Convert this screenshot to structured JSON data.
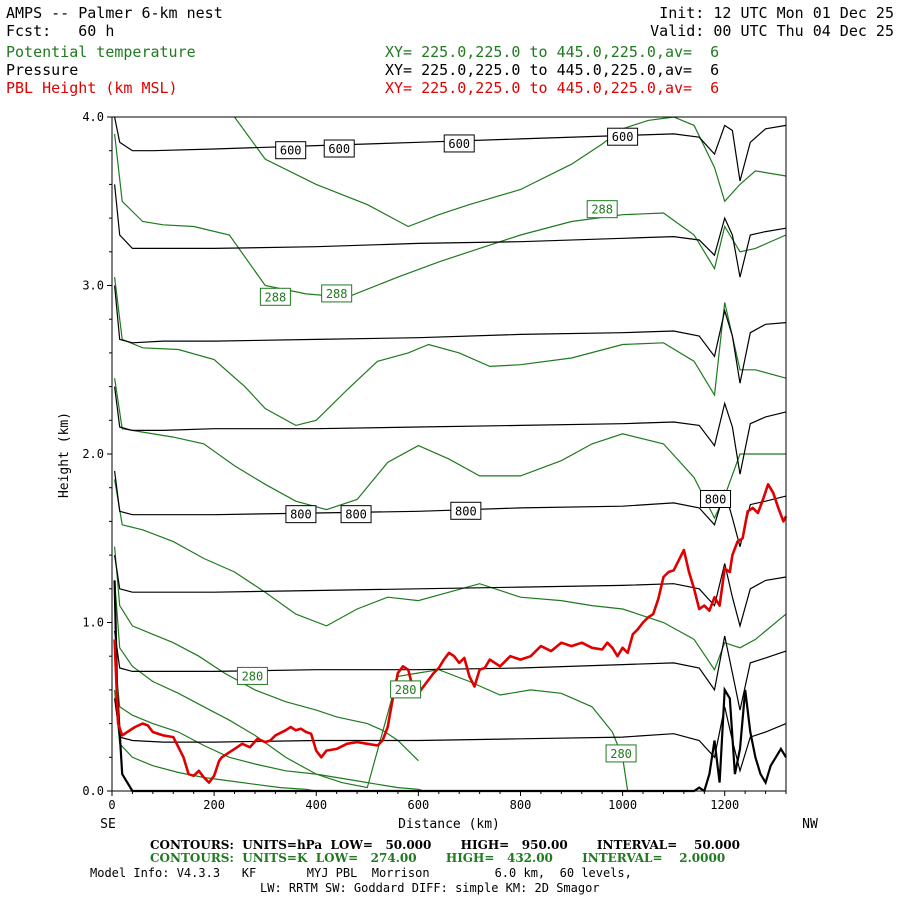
{
  "header": {
    "title": "AMPS -- Palmer 6-km nest",
    "forecast": "Fcst:   60 h",
    "init": "Init: 12 UTC Mon 01 Dec 25",
    "valid": "Valid: 00 UTC Thu 04 Dec 25",
    "fields": [
      {
        "name": "Potential temperature",
        "xy": "XY= 225.0,225.0 to 445.0,225.0,av=  6",
        "color": "#1e7a1e"
      },
      {
        "name": "Pressure",
        "xy": "XY= 225.0,225.0 to 445.0,225.0,av=  6",
        "color": "#000000"
      },
      {
        "name": "PBL Height (km MSL)",
        "xy": "XY= 225.0,225.0 to 445.0,225.0,av=  6",
        "color": "#e00000"
      }
    ]
  },
  "chart_data": {
    "type": "line",
    "title": "AMPS -- Palmer 6-km nest cross-section",
    "xlabel": "Distance (km)",
    "ylabel": "Height (km)",
    "xlim": [
      0,
      1320
    ],
    "ylim": [
      0,
      4.0
    ],
    "x_ticks": [
      "0",
      "200",
      "400",
      "600",
      "800",
      "1000",
      "1200"
    ],
    "x_tick_values": [
      0,
      200,
      400,
      600,
      800,
      1000,
      1200
    ],
    "y_ticks": [
      "0.0",
      "1.0",
      "2.0",
      "3.0",
      "4.0"
    ],
    "y_tick_values": [
      0,
      1,
      2,
      3,
      4
    ],
    "left_end_label": "SE",
    "right_end_label": "NW",
    "pressure_contours": [
      {
        "hpa": 600,
        "x": [
          5,
          15,
          40,
          80,
          200,
          400,
          600,
          800,
          1000,
          1100,
          1150,
          1180,
          1200,
          1215,
          1230,
          1250,
          1280,
          1320
        ],
        "y": [
          4.0,
          3.85,
          3.8,
          3.8,
          3.81,
          3.83,
          3.85,
          3.87,
          3.89,
          3.9,
          3.88,
          3.78,
          3.95,
          3.92,
          3.62,
          3.85,
          3.93,
          3.95
        ]
      },
      {
        "hpa": 650,
        "x": [
          5,
          15,
          40,
          100,
          200,
          400,
          600,
          800,
          1000,
          1100,
          1150,
          1180,
          1200,
          1215,
          1230,
          1250,
          1280,
          1320
        ],
        "y": [
          3.6,
          3.3,
          3.22,
          3.22,
          3.22,
          3.23,
          3.25,
          3.26,
          3.28,
          3.29,
          3.27,
          3.18,
          3.4,
          3.3,
          3.05,
          3.3,
          3.32,
          3.34
        ]
      },
      {
        "hpa": 700,
        "x": [
          5,
          15,
          40,
          100,
          200,
          400,
          600,
          800,
          1000,
          1100,
          1150,
          1180,
          1200,
          1215,
          1230,
          1250,
          1280,
          1320
        ],
        "y": [
          3.0,
          2.68,
          2.66,
          2.67,
          2.67,
          2.68,
          2.69,
          2.71,
          2.72,
          2.73,
          2.7,
          2.58,
          2.85,
          2.7,
          2.42,
          2.72,
          2.77,
          2.78
        ]
      },
      {
        "hpa": 750,
        "x": [
          5,
          15,
          40,
          100,
          200,
          400,
          600,
          800,
          1000,
          1100,
          1150,
          1180,
          1200,
          1215,
          1230,
          1250,
          1280,
          1320
        ],
        "y": [
          2.4,
          2.16,
          2.14,
          2.14,
          2.15,
          2.15,
          2.16,
          2.17,
          2.18,
          2.19,
          2.17,
          2.05,
          2.3,
          2.16,
          1.88,
          2.18,
          2.22,
          2.25
        ]
      },
      {
        "hpa": 800,
        "x": [
          5,
          15,
          40,
          100,
          200,
          400,
          600,
          800,
          1000,
          1100,
          1150,
          1180,
          1200,
          1215,
          1230,
          1250,
          1280,
          1320
        ],
        "y": [
          1.9,
          1.66,
          1.64,
          1.64,
          1.64,
          1.65,
          1.66,
          1.68,
          1.69,
          1.71,
          1.68,
          1.58,
          1.78,
          1.62,
          1.45,
          1.7,
          1.72,
          1.75
        ]
      },
      {
        "hpa": 850,
        "x": [
          5,
          15,
          40,
          100,
          200,
          400,
          600,
          800,
          1000,
          1100,
          1150,
          1180,
          1200,
          1215,
          1230,
          1250,
          1280,
          1320
        ],
        "y": [
          1.4,
          1.2,
          1.18,
          1.18,
          1.18,
          1.19,
          1.2,
          1.21,
          1.22,
          1.23,
          1.2,
          1.1,
          1.35,
          1.15,
          0.98,
          1.2,
          1.25,
          1.27
        ]
      },
      {
        "hpa": 900,
        "x": [
          5,
          15,
          40,
          100,
          200,
          400,
          600,
          800,
          1000,
          1100,
          1150,
          1180,
          1200,
          1215,
          1230,
          1250,
          1280,
          1320
        ],
        "y": [
          0.95,
          0.73,
          0.71,
          0.71,
          0.71,
          0.72,
          0.72,
          0.73,
          0.75,
          0.76,
          0.73,
          0.6,
          0.92,
          0.7,
          0.48,
          0.76,
          0.79,
          0.83
        ]
      },
      {
        "hpa": 950,
        "x": [
          5,
          15,
          40,
          100,
          200,
          400,
          600,
          800,
          1000,
          1100,
          1150,
          1180,
          1200,
          1215,
          1230,
          1250,
          1280,
          1320
        ],
        "y": [
          0.55,
          0.32,
          0.3,
          0.29,
          0.29,
          0.3,
          0.3,
          0.31,
          0.32,
          0.34,
          0.3,
          0.2,
          0.5,
          0.3,
          0.12,
          0.32,
          0.35,
          0.4
        ]
      }
    ],
    "pressure_labels": [
      {
        "text": "600",
        "x": 350,
        "y": 3.8
      },
      {
        "text": "600",
        "x": 445,
        "y": 3.81
      },
      {
        "text": "600",
        "x": 680,
        "y": 3.84
      },
      {
        "text": "600",
        "x": 1000,
        "y": 3.88
      },
      {
        "text": "800",
        "x": 370,
        "y": 1.64
      },
      {
        "text": "800",
        "x": 478,
        "y": 1.64
      },
      {
        "text": "800",
        "x": 693,
        "y": 1.66
      },
      {
        "text": "800",
        "x": 1182,
        "y": 1.73
      }
    ],
    "theta_contours": [
      {
        "x": [
          240,
          300,
          400,
          500,
          580,
          640,
          700,
          800,
          900,
          960,
          1000,
          1050,
          1100,
          1140,
          1180,
          1200,
          1230,
          1260,
          1320
        ],
        "y": [
          4.0,
          3.75,
          3.6,
          3.48,
          3.35,
          3.42,
          3.48,
          3.57,
          3.72,
          3.84,
          3.93,
          3.98,
          4.0,
          3.95,
          3.7,
          3.5,
          3.6,
          3.68,
          3.65
        ]
      },
      {
        "x": [
          5,
          20,
          60,
          100,
          160,
          230,
          300,
          380,
          460,
          560,
          640,
          720,
          800,
          900,
          1000,
          1080,
          1140,
          1180,
          1200,
          1230,
          1260,
          1320
        ],
        "y": [
          3.9,
          3.5,
          3.38,
          3.36,
          3.35,
          3.3,
          3.0,
          2.95,
          2.93,
          3.05,
          3.14,
          3.22,
          3.3,
          3.38,
          3.42,
          3.43,
          3.3,
          3.1,
          3.35,
          3.2,
          3.22,
          3.3
        ]
      },
      {
        "x": [
          5,
          20,
          60,
          130,
          200,
          260,
          300,
          360,
          400,
          460,
          520,
          580,
          620,
          680,
          740,
          800,
          900,
          1000,
          1080,
          1140,
          1180,
          1200,
          1230,
          1260,
          1320
        ],
        "y": [
          3.05,
          2.68,
          2.63,
          2.62,
          2.56,
          2.4,
          2.27,
          2.17,
          2.2,
          2.38,
          2.55,
          2.6,
          2.65,
          2.6,
          2.52,
          2.53,
          2.57,
          2.65,
          2.66,
          2.55,
          2.35,
          2.9,
          2.5,
          2.5,
          2.45
        ]
      },
      {
        "x": [
          5,
          20,
          60,
          120,
          180,
          240,
          300,
          360,
          420,
          480,
          540,
          600,
          660,
          720,
          800,
          880,
          940,
          1000,
          1080,
          1140,
          1180,
          1200,
          1230,
          1260,
          1320
        ],
        "y": [
          2.45,
          2.15,
          2.13,
          2.1,
          2.06,
          1.93,
          1.82,
          1.72,
          1.67,
          1.73,
          1.95,
          2.05,
          1.97,
          1.87,
          1.87,
          1.96,
          2.06,
          2.12,
          2.06,
          1.86,
          1.62,
          1.75,
          2.0,
          2.0,
          2.0
        ]
      },
      {
        "x": [
          5,
          20,
          60,
          120,
          180,
          240,
          300,
          360,
          420,
          480,
          540,
          600,
          660,
          720,
          800,
          880,
          940,
          1000,
          1080,
          1140,
          1180,
          1200,
          1230,
          1260,
          1320
        ],
        "y": [
          1.85,
          1.58,
          1.55,
          1.48,
          1.38,
          1.3,
          1.18,
          1.05,
          0.98,
          1.08,
          1.15,
          1.13,
          1.18,
          1.23,
          1.15,
          1.13,
          1.1,
          1.08,
          1.0,
          0.9,
          0.72,
          0.88,
          0.85,
          0.9,
          1.05
        ]
      },
      {
        "x": [
          5,
          15,
          40,
          80,
          120,
          170,
          220,
          280,
          340,
          400,
          440,
          500,
          530,
          560,
          600
        ],
        "y": [
          1.45,
          1.1,
          0.98,
          0.93,
          0.88,
          0.8,
          0.7,
          0.6,
          0.53,
          0.48,
          0.44,
          0.4,
          0.36,
          0.3,
          0.18
        ]
      },
      {
        "x": [
          5,
          15,
          40,
          80,
          130,
          180,
          230,
          280,
          340,
          400,
          450,
          500,
          560,
          600,
          640,
          700,
          760,
          820,
          880,
          940,
          980,
          1000,
          1010
        ],
        "y": [
          1.25,
          0.85,
          0.74,
          0.65,
          0.58,
          0.5,
          0.42,
          0.33,
          0.2,
          0.1,
          0.05,
          0.02,
          0.68,
          0.7,
          0.72,
          0.65,
          0.57,
          0.6,
          0.58,
          0.5,
          0.35,
          0.2,
          0.0
        ]
      },
      {
        "x": [
          5,
          15,
          40,
          80,
          130,
          180,
          230,
          280,
          340,
          400,
          440,
          480,
          520,
          560,
          600,
          610
        ],
        "y": [
          0.8,
          0.5,
          0.45,
          0.4,
          0.35,
          0.27,
          0.2,
          0.16,
          0.12,
          0.1,
          0.08,
          0.06,
          0.04,
          0.02,
          0.01,
          0.0
        ]
      },
      {
        "x": [
          5,
          15,
          40,
          80,
          130,
          180,
          230,
          280,
          330,
          380,
          400
        ],
        "y": [
          0.6,
          0.28,
          0.2,
          0.15,
          0.11,
          0.08,
          0.06,
          0.04,
          0.02,
          0.01,
          0.0
        ]
      }
    ],
    "theta_labels": [
      {
        "text": "288",
        "x": 320,
        "y": 2.93
      },
      {
        "text": "288",
        "x": 440,
        "y": 2.95
      },
      {
        "text": "288",
        "x": 960,
        "y": 3.45
      },
      {
        "text": "280",
        "x": 275,
        "y": 0.68
      },
      {
        "text": "280",
        "x": 575,
        "y": 0.6
      },
      {
        "text": "280",
        "x": 997,
        "y": 0.22
      }
    ],
    "terrain": {
      "x": [
        5,
        10,
        20,
        40,
        1140,
        1150,
        1160,
        1170,
        1180,
        1190,
        1200,
        1210,
        1220,
        1230,
        1240,
        1250,
        1260,
        1270,
        1280,
        1290,
        1300,
        1310,
        1320
      ],
      "y": [
        1.25,
        0.6,
        0.1,
        0.0,
        0.0,
        0.02,
        0.0,
        0.1,
        0.3,
        0.05,
        0.6,
        0.55,
        0.1,
        0.25,
        0.6,
        0.35,
        0.2,
        0.1,
        0.05,
        0.15,
        0.2,
        0.25,
        0.2
      ]
    },
    "series": [
      {
        "name": "PBL Height (km MSL)",
        "color": "#e00000",
        "x": [
          5,
          12,
          20,
          30,
          45,
          60,
          70,
          80,
          100,
          120,
          140,
          150,
          160,
          170,
          180,
          190,
          200,
          210,
          215,
          225,
          240,
          255,
          270,
          285,
          300,
          310,
          320,
          340,
          350,
          360,
          370,
          380,
          390,
          400,
          410,
          420,
          440,
          460,
          480,
          500,
          520,
          530,
          540,
          550,
          560,
          570,
          580,
          590,
          600,
          610,
          630,
          640,
          650,
          660,
          670,
          680,
          690,
          700,
          710,
          720,
          730,
          740,
          760,
          780,
          800,
          820,
          840,
          860,
          880,
          900,
          920,
          940,
          960,
          970,
          980,
          990,
          1000,
          1010,
          1020,
          1030,
          1040,
          1050,
          1060,
          1070,
          1080,
          1090,
          1100,
          1110,
          1120,
          1130,
          1140,
          1150,
          1160,
          1170,
          1180,
          1190,
          1200,
          1210,
          1215,
          1225,
          1235,
          1245,
          1255,
          1265,
          1275,
          1285,
          1295,
          1305,
          1315,
          1320
        ],
        "y": [
          0.9,
          0.4,
          0.33,
          0.35,
          0.38,
          0.4,
          0.39,
          0.35,
          0.33,
          0.32,
          0.2,
          0.1,
          0.09,
          0.12,
          0.08,
          0.05,
          0.09,
          0.18,
          0.2,
          0.22,
          0.25,
          0.28,
          0.26,
          0.31,
          0.29,
          0.3,
          0.33,
          0.36,
          0.38,
          0.36,
          0.37,
          0.35,
          0.34,
          0.24,
          0.2,
          0.24,
          0.25,
          0.28,
          0.29,
          0.28,
          0.27,
          0.3,
          0.38,
          0.55,
          0.7,
          0.74,
          0.72,
          0.6,
          0.58,
          0.62,
          0.7,
          0.73,
          0.78,
          0.82,
          0.8,
          0.76,
          0.79,
          0.68,
          0.62,
          0.72,
          0.73,
          0.78,
          0.74,
          0.8,
          0.78,
          0.8,
          0.86,
          0.83,
          0.88,
          0.86,
          0.88,
          0.85,
          0.84,
          0.88,
          0.85,
          0.8,
          0.85,
          0.82,
          0.93,
          0.96,
          1.0,
          1.03,
          1.05,
          1.14,
          1.27,
          1.3,
          1.31,
          1.37,
          1.43,
          1.3,
          1.2,
          1.08,
          1.1,
          1.07,
          1.15,
          1.1,
          1.32,
          1.3,
          1.4,
          1.48,
          1.5,
          1.66,
          1.68,
          1.65,
          1.73,
          1.82,
          1.77,
          1.68,
          1.6,
          1.63
        ]
      }
    ]
  },
  "footer": {
    "line1": "CONTOURS:  UNITS=hPa  LOW=   50.000       HIGH=   950.00       INTERVAL=    50.000",
    "line2": "CONTOURS:  UNITS=K  LOW=   274.00       HIGH=   432.00       INTERVAL=    2.0000",
    "line3": "Model Info: V4.3.3   KF       MYJ PBL  Morrison         6.0 km,  60 levels,",
    "line4": "LW: RRTM SW: Goddard DIFF: simple KM: 2D Smagor"
  },
  "colors": {
    "theta": "#1e7a1e",
    "pressure": "#000000",
    "pbl": "#e00000",
    "frame": "#000000"
  }
}
